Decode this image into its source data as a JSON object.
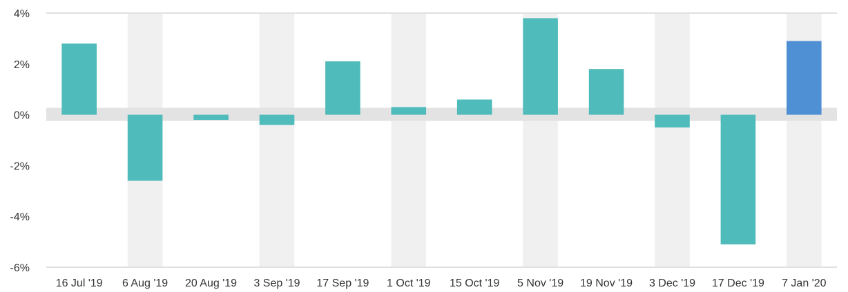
{
  "chart_data": {
    "type": "bar",
    "categories": [
      "16 Jul '19",
      "6 Aug '19",
      "20 Aug '19",
      "3 Sep '19",
      "17 Sep '19",
      "1 Oct '19",
      "15 Oct '19",
      "5 Nov '19",
      "19 Nov '19",
      "3 Dec '19",
      "17 Dec '19",
      "7 Jan '20"
    ],
    "values": [
      2.8,
      -2.6,
      -0.2,
      -0.4,
      2.1,
      0.3,
      0.6,
      3.8,
      1.8,
      -0.5,
      -5.1,
      2.9
    ],
    "highlight_index": 11,
    "ylim": [
      -6,
      4
    ],
    "yticks": [
      -6,
      -4,
      -2,
      0,
      2,
      4
    ],
    "ytick_labels": [
      "-6%",
      "-4%",
      "-2%",
      "0%",
      "2%",
      "4%"
    ],
    "title": "",
    "xlabel": "",
    "ylabel": "",
    "grid": false,
    "legend": "none",
    "colors": {
      "bar": "#4fbbbb",
      "highlight_bar": "#4f8fd4",
      "column_band": "#f0f0f0",
      "zero_band": "#e3e3e3",
      "axis_line": "#e0e0e0",
      "text": "#333333"
    }
  }
}
